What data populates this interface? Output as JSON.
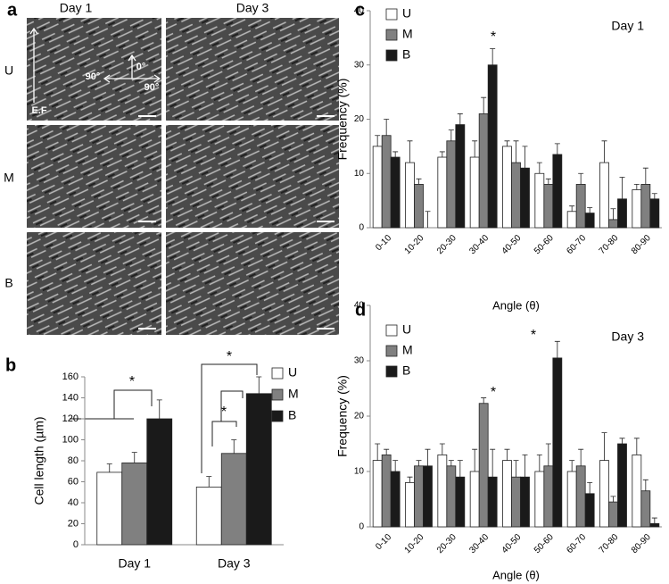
{
  "panel_labels": [
    "a",
    "b",
    "c",
    "d"
  ],
  "micrographs": {
    "columns": [
      "Day 1",
      "Day 3"
    ],
    "rows": [
      "U",
      "M",
      "B"
    ],
    "field_label": "E.F",
    "angles": [
      "0°",
      "90°",
      "90°"
    ]
  },
  "chart_data": [
    {
      "type": "bar",
      "ylabel": "Cell length (µm)",
      "categories": [
        "Day 1",
        "Day 3"
      ],
      "series": [
        {
          "name": "U",
          "color": "#ffffff",
          "values": [
            69,
            55
          ],
          "errors": [
            8,
            10
          ]
        },
        {
          "name": "M",
          "color": "#808080",
          "values": [
            78,
            87
          ],
          "errors": [
            10,
            13
          ]
        },
        {
          "name": "B",
          "color": "#1a1a1a",
          "values": [
            120,
            144
          ],
          "errors": [
            18,
            16
          ]
        }
      ],
      "ylim": [
        0,
        160
      ],
      "yticks": [
        0,
        20,
        40,
        60,
        80,
        100,
        120,
        140,
        160
      ],
      "annotations": [
        "*",
        "*",
        "*"
      ]
    },
    {
      "type": "bar",
      "title": "Day 1",
      "ylabel": "Frequency (%)",
      "xlabel": "Angle (θ)",
      "categories": [
        "0-10",
        "10-20",
        "20-30",
        "30-40",
        "40-50",
        "50-60",
        "60-70",
        "70-80",
        "80-90"
      ],
      "series": [
        {
          "name": "U",
          "color": "#ffffff",
          "values": [
            15,
            12,
            13,
            13,
            15,
            10,
            3,
            12,
            7
          ],
          "errors": [
            2,
            4,
            1,
            3,
            1,
            2,
            1,
            4,
            1
          ]
        },
        {
          "name": "M",
          "color": "#808080",
          "values": [
            17,
            8,
            16,
            21,
            12,
            8,
            8,
            1.5,
            8
          ],
          "errors": [
            3,
            1,
            2,
            3,
            4,
            1,
            2,
            2,
            3
          ]
        },
        {
          "name": "B",
          "color": "#1a1a1a",
          "values": [
            13,
            0,
            19,
            30,
            11,
            13.5,
            2.7,
            5.3,
            5.3
          ],
          "errors": [
            1,
            3,
            2,
            3,
            4,
            2,
            1,
            4,
            1
          ]
        }
      ],
      "ylim": [
        0,
        40
      ],
      "yticks": [
        0,
        10,
        20,
        30,
        40
      ],
      "annotations": [
        "*"
      ]
    },
    {
      "type": "bar",
      "title": "Day 3",
      "ylabel": "Frequency (%)",
      "xlabel": "Angle (θ)",
      "categories": [
        "0-10",
        "10-20",
        "20-30",
        "30-40",
        "40-50",
        "50-60",
        "60-70",
        "70-80",
        "80-90"
      ],
      "series": [
        {
          "name": "U",
          "color": "#ffffff",
          "values": [
            12,
            8,
            13,
            10,
            12,
            10,
            10,
            12,
            13
          ],
          "errors": [
            3,
            1,
            2,
            4,
            2,
            3,
            2,
            5,
            3
          ]
        },
        {
          "name": "M",
          "color": "#808080",
          "values": [
            13,
            11,
            11,
            22.3,
            9,
            11,
            11,
            4.5,
            6.5
          ],
          "errors": [
            1,
            1,
            1,
            1,
            3,
            4,
            3,
            1,
            2
          ]
        },
        {
          "name": "B",
          "color": "#1a1a1a",
          "values": [
            10,
            11,
            9,
            9,
            9,
            30.5,
            6,
            15,
            0.6
          ],
          "errors": [
            2,
            3,
            3,
            5,
            4,
            3,
            2,
            1,
            1
          ]
        }
      ],
      "ylim": [
        0,
        40
      ],
      "yticks": [
        0,
        10,
        20,
        30,
        40
      ],
      "annotations": [
        "*",
        "*"
      ]
    }
  ]
}
